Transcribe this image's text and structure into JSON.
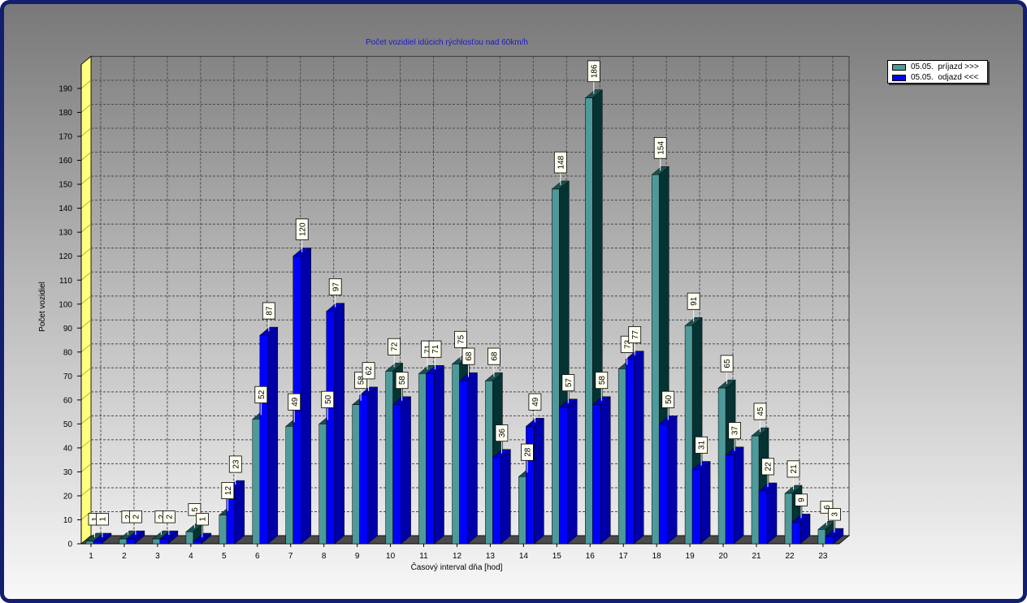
{
  "colors": {
    "frame": "#141e6e",
    "title": "#1a1acc",
    "left_wall": "#ffff80",
    "floor": "#4a4a4a",
    "data_label_fill": "#fffff0"
  },
  "chart_data": {
    "type": "bar",
    "style": "3d",
    "title": "Počet vozidiel idúcich rýchlosťou nad 60km/h",
    "xlabel": "Časový interval dňa [hod]",
    "ylabel": "Počet vozidiel",
    "categories": [
      "1",
      "2",
      "3",
      "4",
      "5",
      "6",
      "7",
      "8",
      "9",
      "10",
      "11",
      "12",
      "13",
      "14",
      "15",
      "16",
      "17",
      "18",
      "19",
      "20",
      "21",
      "22",
      "23"
    ],
    "series": [
      {
        "name": "05.05.  príjazd >>>",
        "color": "#4e9a9a",
        "top_color": "#1a5050",
        "side_color": "#053333",
        "values": [
          1,
          2,
          2,
          5,
          12,
          52,
          49,
          50,
          58,
          72,
          71,
          75,
          68,
          28,
          148,
          186,
          73,
          154,
          91,
          65,
          45,
          21,
          6
        ]
      },
      {
        "name": "05.05.  odjazd <<<",
        "color": "#0000ff",
        "top_color": "#0000c4",
        "side_color": "#0000a8",
        "values": [
          1,
          2,
          2,
          1,
          23,
          87,
          120,
          97,
          62,
          58,
          71,
          68,
          36,
          49,
          57,
          58,
          77,
          50,
          31,
          37,
          22,
          9,
          3
        ]
      }
    ],
    "ylim": [
      0,
      200
    ],
    "y_ticks": [
      0,
      10,
      20,
      30,
      40,
      50,
      60,
      70,
      80,
      90,
      100,
      110,
      120,
      130,
      140,
      150,
      160,
      170,
      180,
      190
    ],
    "grid": true,
    "data_labels": true,
    "legend_position": "top-right"
  }
}
